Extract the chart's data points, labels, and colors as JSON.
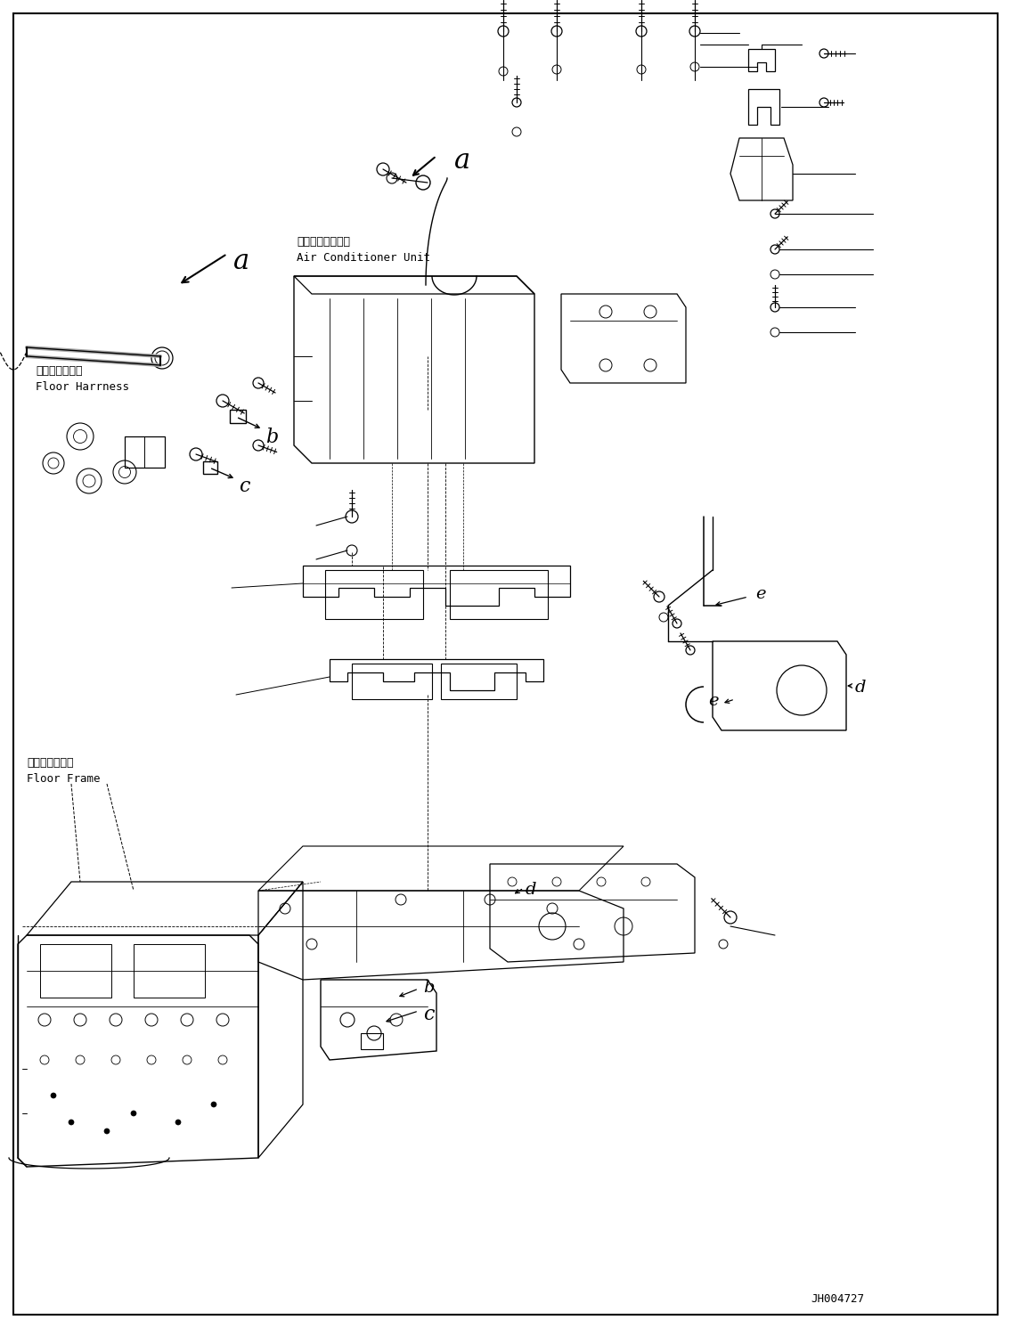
{
  "fig_width": 11.35,
  "fig_height": 14.91,
  "dpi": 100,
  "bg_color": "#ffffff",
  "part_id": "JH004727",
  "label_ac_jp": "エアコンユニット",
  "label_ac_en": "Air Conditioner Unit",
  "label_fh_jp": "フロアハーネス",
  "label_fh_en": "Floor Harrness",
  "label_ff_jp": "フロアフレーム",
  "label_ff_en": "Floor Frame"
}
